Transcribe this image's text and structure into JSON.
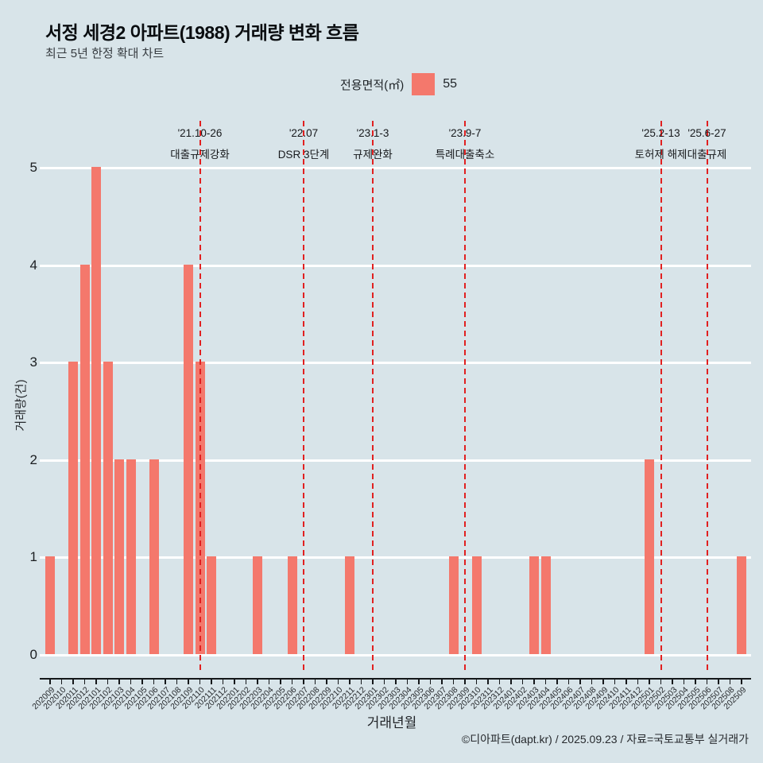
{
  "title": "서정 세경2 아파트(1988) 거래량 변화 흐름",
  "subtitle": "최근 5년 한정 확대 차트",
  "legend": {
    "label": "전용면적(㎡)",
    "series_name": "55",
    "swatch_color": "#f4786c"
  },
  "chart_data": {
    "type": "bar",
    "title": "서정 세경2 아파트(1988) 거래량 변화 흐름",
    "xlabel": "거래년월",
    "ylabel": "거래량(건)",
    "ylim": [
      0,
      5
    ],
    "yticks": [
      0,
      1,
      2,
      3,
      4,
      5
    ],
    "grid": "horizontal-white",
    "legend_position": "top",
    "bar_color": "#f4786c",
    "background_color": "#d8e4e9",
    "event_line_color": "#e12020",
    "x": [
      "202009",
      "202010",
      "202011",
      "202012",
      "202101",
      "202102",
      "202103",
      "202104",
      "202105",
      "202106",
      "202107",
      "202108",
      "202109",
      "202110",
      "202111",
      "202112",
      "202201",
      "202202",
      "202203",
      "202204",
      "202205",
      "202206",
      "202207",
      "202208",
      "202209",
      "202210",
      "202211",
      "202212",
      "202301",
      "202302",
      "202303",
      "202304",
      "202305",
      "202306",
      "202307",
      "202308",
      "202309",
      "202310",
      "202311",
      "202312",
      "202401",
      "202402",
      "202403",
      "202404",
      "202405",
      "202406",
      "202407",
      "202408",
      "202409",
      "202410",
      "202411",
      "202412",
      "202501",
      "202502",
      "202503",
      "202504",
      "202505",
      "202506",
      "202507",
      "202508",
      "202509"
    ],
    "values": [
      1,
      0,
      3,
      4,
      5,
      3,
      2,
      2,
      0,
      2,
      0,
      0,
      4,
      3,
      1,
      0,
      0,
      0,
      1,
      0,
      0,
      1,
      0,
      0,
      0,
      0,
      1,
      0,
      0,
      0,
      0,
      0,
      0,
      0,
      0,
      1,
      0,
      1,
      0,
      0,
      0,
      0,
      1,
      1,
      0,
      0,
      0,
      0,
      0,
      0,
      0,
      0,
      2,
      0,
      0,
      0,
      0,
      0,
      0,
      0,
      1
    ],
    "annotations": [
      {
        "month": "202110",
        "date": "'21.10-26",
        "label": "대출규제강화"
      },
      {
        "month": "202207",
        "date": "'22.07",
        "label": "DSR 3단계"
      },
      {
        "month": "202301",
        "date": "'23.1-3",
        "label": "규제완화"
      },
      {
        "month": "202309",
        "date": "'23.9-7",
        "label": "특례대출축소"
      },
      {
        "month": "202502",
        "date": "'25.2-13",
        "label": "토허제 해제"
      },
      {
        "month": "202506",
        "date": "'25.6-27",
        "label": "대출규제"
      }
    ]
  },
  "footer": "©디아파트(dapt.kr) / 2025.09.23 / 자료=국토교통부 실거래가"
}
